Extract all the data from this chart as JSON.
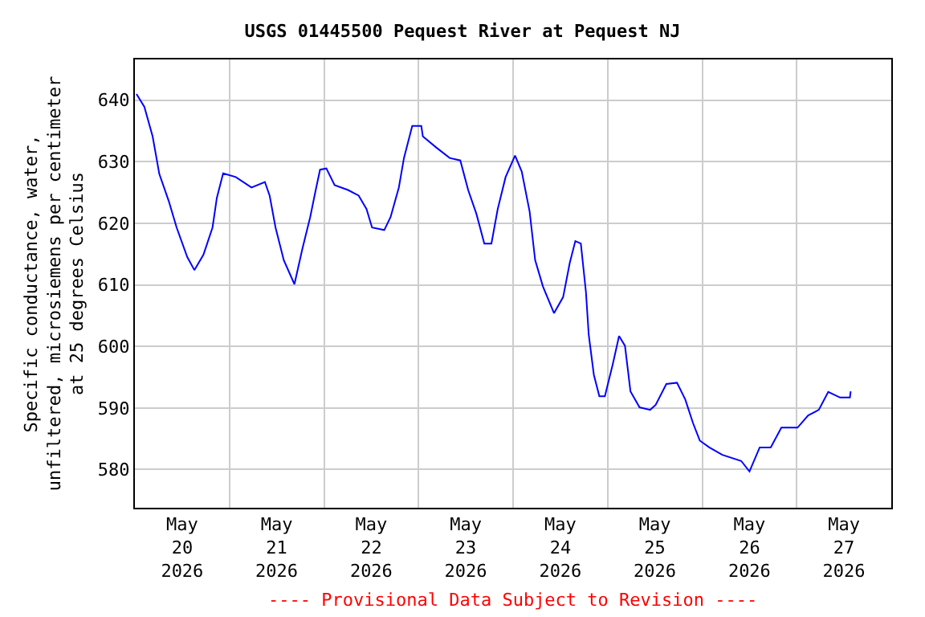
{
  "chart_data": {
    "type": "line",
    "title": "USGS 01445500 Pequest River at Pequest NJ",
    "ylabel": "Specific conductance, water,\nunfiltered, microsiemens per centimeter\nat 25 degrees Celsius",
    "annotations": [
      "---- Provisional Data Subject to Revision ----"
    ],
    "x": [
      "2026-05-20T00:24",
      "2026-05-20T02:24",
      "2026-05-20T04:30",
      "2026-05-20T06:12",
      "2026-05-20T08:36",
      "2026-05-20T10:36",
      "2026-05-20T13:18",
      "2026-05-20T15:06",
      "2026-05-20T17:24",
      "2026-05-20T19:42",
      "2026-05-20T20:48",
      "2026-05-20T22:24",
      "2026-05-21T01:36",
      "2026-05-21T05:36",
      "2026-05-21T09:00",
      "2026-05-21T10:12",
      "2026-05-21T11:42",
      "2026-05-21T13:48",
      "2026-05-21T16:30",
      "2026-05-21T18:30",
      "2026-05-21T20:30",
      "2026-05-21T21:54",
      "2026-05-21T23:00",
      "2026-05-22T00:36",
      "2026-05-22T02:42",
      "2026-05-22T06:06",
      "2026-05-22T08:48",
      "2026-05-22T10:48",
      "2026-05-22T12:12",
      "2026-05-22T15:18",
      "2026-05-22T16:54",
      "2026-05-22T19:00",
      "2026-05-22T20:18",
      "2026-05-22T22:24",
      "2026-05-23T00:42",
      "2026-05-23T01:06",
      "2026-05-23T04:30",
      "2026-05-23T07:54",
      "2026-05-23T10:36",
      "2026-05-23T12:36",
      "2026-05-23T14:42",
      "2026-05-23T16:42",
      "2026-05-23T18:30",
      "2026-05-23T20:06",
      "2026-05-23T22:06",
      "2026-05-24T00:30",
      "2026-05-24T02:12",
      "2026-05-24T04:12",
      "2026-05-24T05:36",
      "2026-05-24T07:36",
      "2026-05-24T10:24",
      "2026-05-24T12:42",
      "2026-05-24T14:24",
      "2026-05-24T15:48",
      "2026-05-24T17:12",
      "2026-05-24T18:30",
      "2026-05-24T19:12",
      "2026-05-24T20:30",
      "2026-05-24T21:54",
      "2026-05-24T23:18",
      "2026-05-25T01:18",
      "2026-05-25T02:54",
      "2026-05-25T04:24",
      "2026-05-25T05:48",
      "2026-05-25T08:06",
      "2026-05-25T10:48",
      "2026-05-25T12:12",
      "2026-05-25T14:54",
      "2026-05-25T17:36",
      "2026-05-25T19:42",
      "2026-05-25T21:42",
      "2026-05-25T23:24",
      "2026-05-26T01:48",
      "2026-05-26T05:06",
      "2026-05-26T09:54",
      "2026-05-26T12:00",
      "2026-05-26T14:36",
      "2026-05-26T17:24",
      "2026-05-26T20:06",
      "2026-05-27T00:12",
      "2026-05-27T02:54",
      "2026-05-27T05:36",
      "2026-05-27T08:00",
      "2026-05-27T11:00",
      "2026-05-27T13:30",
      "2026-05-27T13:42"
    ],
    "series": [
      {
        "color": "#0000ff",
        "values": [
          641.0,
          638.9,
          634.1,
          628,
          623.6,
          619.3,
          614.5,
          612.4,
          614.9,
          619.3,
          624.1,
          628.1,
          627.5,
          625.8,
          626.7,
          624.5,
          619.3,
          614,
          610.1,
          615.8,
          621,
          625.4,
          628.7,
          628.9,
          626.2,
          625.4,
          624.5,
          622.3,
          619.3,
          618.9,
          621,
          625.8,
          630.6,
          635.8,
          635.8,
          634.1,
          632.3,
          630.6,
          630.2,
          625.4,
          621.5,
          616.7,
          616.7,
          622.3,
          627.5,
          631,
          628.4,
          621.9,
          614,
          609.7,
          605.4,
          608,
          613.6,
          617.1,
          616.7,
          608.8,
          601.9,
          595.4,
          591.9,
          591.9,
          597.1,
          601.7,
          600.1,
          592.7,
          590.1,
          589.7,
          590.5,
          593.9,
          594.1,
          591.4,
          587.5,
          584.7,
          583.6,
          582.4,
          581.4,
          579.7,
          583.6,
          583.6,
          586.8,
          586.8,
          588.8,
          589.7,
          592.6,
          591.7,
          591.7,
          592.7
        ]
      }
    ],
    "xlim": [
      "2026-05-20",
      "2026-05-28"
    ],
    "xticks": [
      {
        "value": "2026-05-20T12:00",
        "label": "May\n20\n2026"
      },
      {
        "value": "2026-05-21T12:00",
        "label": "May\n21\n2026"
      },
      {
        "value": "2026-05-22T12:00",
        "label": "May\n22\n2026"
      },
      {
        "value": "2026-05-23T12:00",
        "label": "May\n23\n2026"
      },
      {
        "value": "2026-05-24T12:00",
        "label": "May\n24\n2026"
      },
      {
        "value": "2026-05-25T12:00",
        "label": "May\n25\n2026"
      },
      {
        "value": "2026-05-26T12:00",
        "label": "May\n26\n2026"
      },
      {
        "value": "2026-05-27T12:00",
        "label": "May\n27\n2026"
      }
    ],
    "ylim": [
      573.8,
      646.6
    ],
    "yticks": [
      580,
      590,
      600,
      610,
      620,
      630,
      640
    ],
    "grid": true,
    "legend": false,
    "marker": "none",
    "line_style": "solid"
  }
}
